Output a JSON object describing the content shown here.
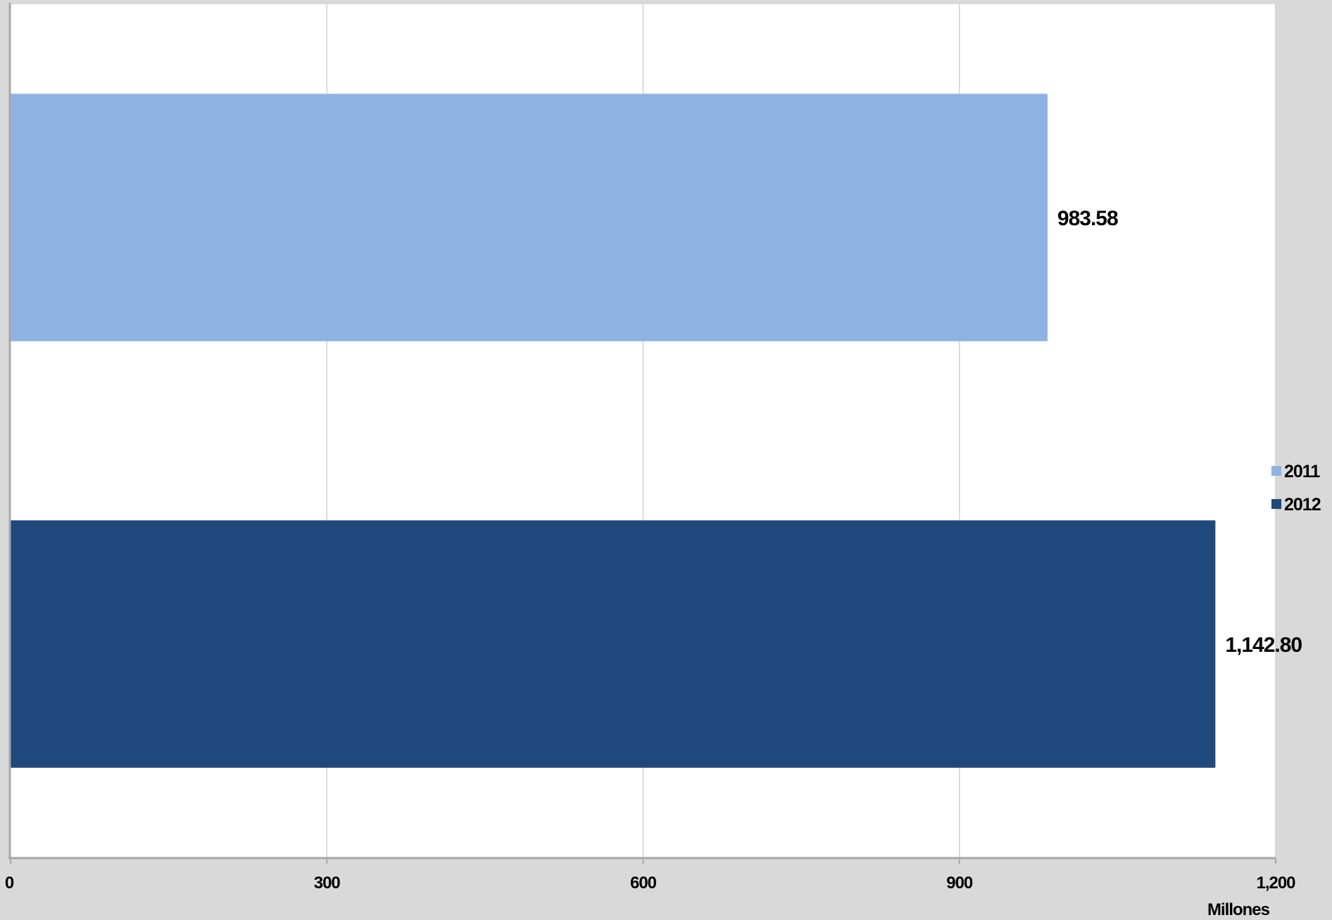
{
  "chart_data": {
    "type": "bar",
    "orientation": "horizontal",
    "series": [
      {
        "name": "2011",
        "value": 983.58,
        "label": "983.58",
        "color": "#8eb3e2"
      },
      {
        "name": "2012",
        "value": 1142.8,
        "label": "1,142.80",
        "color": "#1f497d"
      }
    ],
    "xlim": [
      0,
      1200
    ],
    "xticks": [
      0,
      300,
      600,
      900,
      1200
    ],
    "xtick_labels": [
      "0",
      "300",
      "600",
      "900",
      "1,200"
    ],
    "xlabel": "Millones",
    "grid": "vertical",
    "legend_position": "right",
    "colors": {
      "background": "#d9d9d9",
      "plot_area": "#ffffff",
      "gridline": "#d0d0d0",
      "axis": "#a6a6a6"
    }
  }
}
